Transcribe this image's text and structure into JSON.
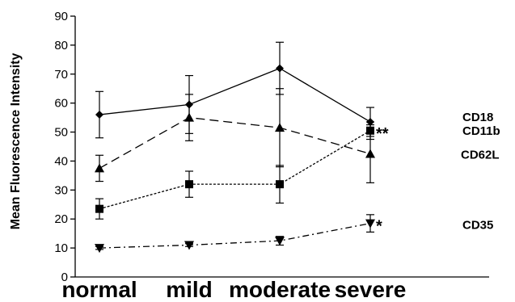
{
  "chart_data": {
    "type": "line",
    "categories": [
      "normal",
      "mild",
      "moderate",
      "severe"
    ],
    "ylabel": "Mean Fluorescence Intensity",
    "ylim": [
      0,
      90
    ],
    "yticks": [
      0,
      10,
      20,
      30,
      40,
      50,
      60,
      70,
      80,
      90
    ],
    "grid": false,
    "series": [
      {
        "name": "CD18",
        "values": [
          56,
          59.5,
          72,
          53.5
        ],
        "err": [
          8,
          10,
          9,
          5
        ],
        "marker": "diamond",
        "dash": "solid",
        "significance": ""
      },
      {
        "name": "CD11b",
        "values": [
          23.5,
          32,
          32,
          50.5
        ],
        "err": [
          3.5,
          4.5,
          6.5,
          3
        ],
        "marker": "square",
        "dash": "dotted",
        "significance": "**"
      },
      {
        "name": "CD62L",
        "values": [
          37.5,
          55,
          51.5,
          42.5
        ],
        "err": [
          4.5,
          8,
          13.5,
          10
        ],
        "marker": "triangle-up",
        "dash": "dashed",
        "significance": ""
      },
      {
        "name": "CD35",
        "values": [
          10,
          11,
          12.5,
          18.5
        ],
        "err": [
          0.5,
          0.5,
          1.5,
          3
        ],
        "marker": "triangle-down",
        "dash": "dashdot",
        "significance": "*"
      }
    ]
  }
}
